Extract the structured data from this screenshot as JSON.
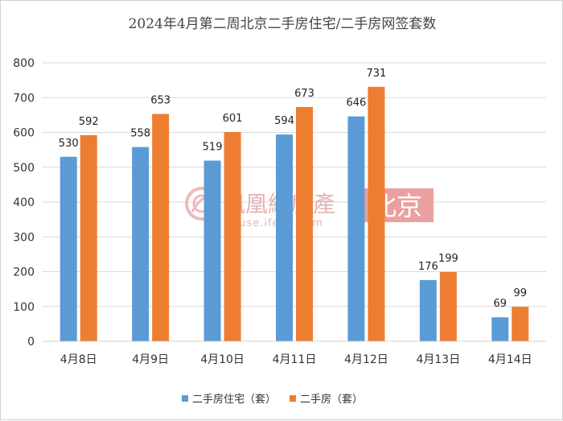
{
  "chart_data": {
    "type": "bar",
    "title": "2024年4月第二周北京二手房住宅/二手房网签套数",
    "categories": [
      "4月8日",
      "4月9日",
      "4月10日",
      "4月11日",
      "4月12日",
      "4月13日",
      "4月14日"
    ],
    "series": [
      {
        "name": "二手房住宅（套）",
        "color": "#5b9bd5",
        "values": [
          530,
          558,
          519,
          594,
          646,
          176,
          69
        ]
      },
      {
        "name": "二手房（套）",
        "color": "#ed7d31",
        "values": [
          592,
          653,
          601,
          673,
          731,
          199,
          99
        ]
      }
    ],
    "ylim": [
      0,
      800
    ],
    "yticks": [
      0,
      100,
      200,
      300,
      400,
      500,
      600,
      700,
      800
    ],
    "grid": true,
    "legend": "bottom"
  },
  "watermark": {
    "brand": "鳳凰網房產",
    "url": "house.ifeng.com",
    "city": "北京",
    "color": "#e06666"
  }
}
